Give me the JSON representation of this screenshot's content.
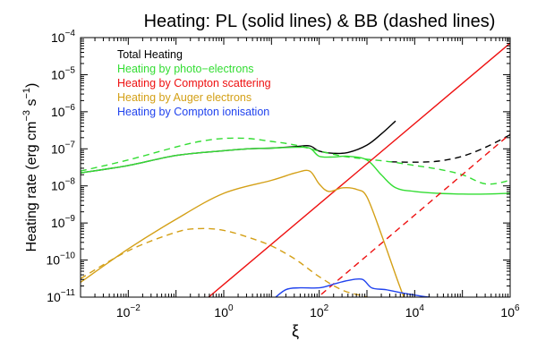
{
  "chart_data": {
    "type": "line",
    "title": "Heating: PL (solid lines) & BB (dashed lines)",
    "xlabel": "ξ",
    "ylabel_main": "Heating rate (erg cm",
    "ylabel_exp1": "−3",
    "ylabel_mid": " s",
    "ylabel_exp2": "−1",
    "ylabel_end": ")",
    "x_scale": "log",
    "y_scale": "log",
    "xlim_log10": [
      -3,
      6
    ],
    "ylim_log10": [
      -11,
      -4
    ],
    "x_ticks": [
      {
        "base": "10",
        "exp": "−2",
        "log": -2
      },
      {
        "base": "10",
        "exp": "0",
        "log": 0
      },
      {
        "base": "10",
        "exp": "2",
        "log": 2
      },
      {
        "base": "10",
        "exp": "4",
        "log": 4
      },
      {
        "base": "10",
        "exp": "6",
        "log": 6
      }
    ],
    "y_ticks": [
      {
        "base": "10",
        "exp": "−4",
        "log": -4
      },
      {
        "base": "10",
        "exp": "−5",
        "log": -5
      },
      {
        "base": "10",
        "exp": "−6",
        "log": -6
      },
      {
        "base": "10",
        "exp": "−7",
        "log": -7
      },
      {
        "base": "10",
        "exp": "−8",
        "log": -8
      },
      {
        "base": "10",
        "exp": "−9",
        "log": -9
      },
      {
        "base": "10",
        "exp": "−10",
        "log": -10
      },
      {
        "base": "10",
        "exp": "−11",
        "log": -11
      }
    ],
    "legend_position": "top-left",
    "legend": [
      {
        "label": "Total Heating",
        "color": "#000000"
      },
      {
        "label": "Heating by photo−electrons",
        "color": "#33dd33"
      },
      {
        "label": "Heating by Compton scattering",
        "color": "#ee1111"
      },
      {
        "label": "Heating by Auger electrons",
        "color": "#d4a017"
      },
      {
        "label": "Heating by Compton ionisation",
        "color": "#2244ee"
      }
    ],
    "series": [
      {
        "name": "Total Heating (PL)",
        "color": "#000000",
        "dash": false,
        "log_x": [
          -3,
          -2,
          -1,
          0,
          0.5,
          1,
          1.5,
          1.8,
          2,
          2.3,
          2.6,
          3,
          3.3,
          3.6
        ],
        "log_y": [
          -7.65,
          -7.45,
          -7.18,
          -7.05,
          -7.0,
          -6.98,
          -6.94,
          -6.92,
          -7.06,
          -7.12,
          -7.1,
          -6.9,
          -6.6,
          -6.25
        ]
      },
      {
        "name": "Total Heating (BB)",
        "color": "#000000",
        "dash": true,
        "log_x": [
          3.5,
          4,
          4.5,
          5,
          5.5,
          6
        ],
        "log_y": [
          -7.35,
          -7.36,
          -7.33,
          -7.2,
          -6.95,
          -6.62
        ]
      },
      {
        "name": "Photo-electrons (PL)",
        "color": "#33dd33",
        "dash": false,
        "log_x": [
          -3,
          -2,
          -1,
          0,
          0.5,
          1,
          1.5,
          1.8,
          2,
          2.3,
          2.6,
          3,
          3.3,
          3.6,
          4,
          4.5,
          5,
          5.5,
          6
        ],
        "log_y": [
          -7.65,
          -7.45,
          -7.18,
          -7.05,
          -7.0,
          -6.98,
          -6.96,
          -6.98,
          -7.2,
          -7.22,
          -7.2,
          -7.3,
          -7.7,
          -8.05,
          -8.15,
          -8.2,
          -8.22,
          -8.22,
          -8.2
        ]
      },
      {
        "name": "Photo-electrons (BB)",
        "color": "#33dd33",
        "dash": true,
        "log_x": [
          -3,
          -2,
          -1,
          -0.5,
          0,
          0.5,
          1,
          1.5,
          2,
          2.5,
          3,
          3.5,
          4,
          4.5,
          5,
          5.5,
          6
        ],
        "log_y": [
          -7.6,
          -7.3,
          -6.95,
          -6.8,
          -6.72,
          -6.72,
          -6.8,
          -6.9,
          -7.06,
          -7.2,
          -7.28,
          -7.35,
          -7.45,
          -7.55,
          -7.7,
          -7.95,
          -7.85
        ]
      },
      {
        "name": "Compton scattering (PL)",
        "color": "#ee1111",
        "dash": false,
        "log_x": [
          -0.5,
          6
        ],
        "log_y": [
          -11.2,
          -4.15
        ]
      },
      {
        "name": "Compton scattering (BB)",
        "color": "#ee1111",
        "dash": true,
        "log_x": [
          1.7,
          6
        ],
        "log_y": [
          -11.3,
          -6.6
        ]
      },
      {
        "name": "Auger electrons (PL)",
        "color": "#d4a017",
        "dash": false,
        "log_x": [
          -3,
          -2,
          -1,
          0,
          1,
          1.5,
          1.8,
          2,
          2.2,
          2.5,
          2.8,
          3,
          3.3,
          3.6,
          3.8
        ],
        "log_y": [
          -10.6,
          -9.7,
          -8.9,
          -8.2,
          -7.85,
          -7.65,
          -7.6,
          -7.95,
          -8.15,
          -8.05,
          -8.1,
          -8.3,
          -9.3,
          -10.4,
          -11.1
        ]
      },
      {
        "name": "Auger electrons (BB)",
        "color": "#d4a017",
        "dash": true,
        "log_x": [
          -3,
          -2,
          -1,
          -0.5,
          0,
          0.5,
          1,
          1.5,
          2,
          2.5,
          3,
          3.2
        ],
        "log_y": [
          -10.5,
          -9.75,
          -9.25,
          -9.15,
          -9.2,
          -9.38,
          -9.62,
          -9.98,
          -10.45,
          -10.82,
          -11.0,
          -11.15
        ]
      },
      {
        "name": "Compton ionisation (PL)",
        "color": "#2244ee",
        "dash": false,
        "log_x": [
          1,
          1.3,
          1.6,
          2,
          2.3,
          2.6,
          2.9,
          3.1,
          3.4,
          3.8,
          4.3,
          5
        ],
        "log_y": [
          -11.1,
          -10.8,
          -10.75,
          -10.75,
          -10.65,
          -10.55,
          -10.52,
          -10.75,
          -10.8,
          -10.9,
          -11.0,
          -11.1
        ]
      },
      {
        "name": "Compton ionisation (BB)",
        "color": "#2244ee",
        "dash": true,
        "log_x": [],
        "log_y": []
      }
    ]
  }
}
